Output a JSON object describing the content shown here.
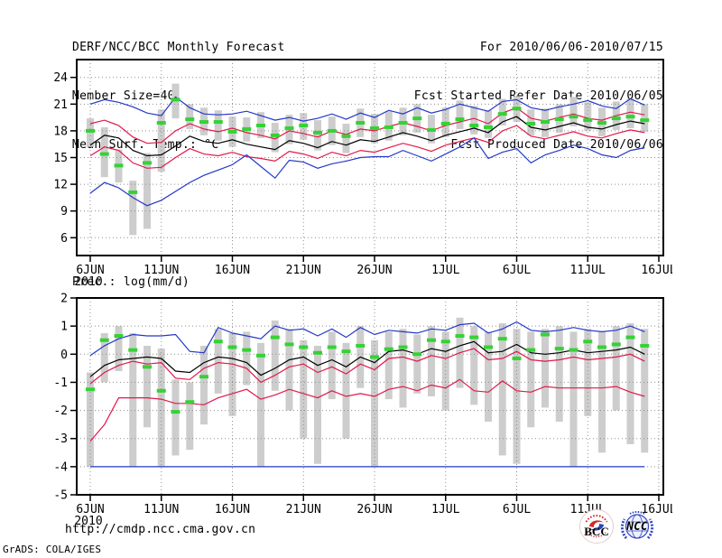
{
  "header": {
    "title": "DERF/NCC/BCC Monthly Forecast",
    "member_size": "Member Size=40",
    "for_range": "For 2010/06/06-2010/07/15",
    "fcst_started": "Fcst Started Refer Date 2010/06/05",
    "fcst_produced": "Fcst Produced Date 2010/06/06"
  },
  "footer": {
    "url": "http://cmdp.ncc.cma.gov.cn",
    "grads_credit": "GrADS: COLA/IGES",
    "bcc_label": "BCC",
    "ncc_label": "NCC"
  },
  "colors": {
    "blue": "#2438c8",
    "red": "#e0194a",
    "black": "#000000",
    "green": "#35d235",
    "bar": "#cdcdcd",
    "grid": "#8f8f8f"
  },
  "chart_data": [
    {
      "type": "line",
      "title": "Mean Surf. Temp.: °C",
      "date_range": "2010/06/06-2010/07/15",
      "n_days": 40,
      "xtick_labels": [
        "6JUN",
        "11JUN",
        "16JUN",
        "21JUN",
        "26JUN",
        "1JUL",
        "6JUL",
        "11JUL",
        "16JUL"
      ],
      "xtick_day_offsets": [
        0,
        5,
        10,
        15,
        20,
        25,
        30,
        35,
        40
      ],
      "year_label": "2010",
      "ylim": [
        4,
        26
      ],
      "yticks": [
        24,
        21,
        18,
        15,
        12,
        9,
        6
      ],
      "grid": "dotted",
      "legend": "none",
      "series": [
        {
          "name": "blue-upper-envelope",
          "color_key": "blue",
          "values": [
            21.0,
            21.5,
            21.2,
            20.7,
            20.0,
            19.7,
            21.8,
            20.6,
            19.9,
            19.8,
            19.9,
            20.2,
            19.7,
            19.2,
            19.5,
            19.1,
            19.4,
            19.9,
            19.3,
            20.0,
            19.5,
            20.3,
            19.9,
            20.6,
            20.0,
            20.4,
            21.0,
            20.6,
            20.2,
            21.3,
            21.5,
            20.6,
            20.3,
            20.7,
            21.0,
            21.4,
            20.8,
            20.5,
            21.6,
            20.9
          ]
        },
        {
          "name": "red-upper-band",
          "color_key": "red",
          "values": [
            18.8,
            19.2,
            18.6,
            17.3,
            16.6,
            16.7,
            18.0,
            18.8,
            18.2,
            17.9,
            18.3,
            17.8,
            17.5,
            17.1,
            18.0,
            17.7,
            17.3,
            18.0,
            17.6,
            18.2,
            18.0,
            18.5,
            18.9,
            18.5,
            18.0,
            18.6,
            19.0,
            19.4,
            18.8,
            20.0,
            20.6,
            19.4,
            19.1,
            19.5,
            19.9,
            19.4,
            19.2,
            19.7,
            20.1,
            19.8
          ]
        },
        {
          "name": "ensemble-mean",
          "color_key": "black",
          "values": [
            16.4,
            17.5,
            17.2,
            15.8,
            15.2,
            15.3,
            16.3,
            17.4,
            16.8,
            16.6,
            17.0,
            16.5,
            16.2,
            15.9,
            16.9,
            16.6,
            16.1,
            16.8,
            16.4,
            17.0,
            16.8,
            17.3,
            17.8,
            17.4,
            16.9,
            17.5,
            17.9,
            18.3,
            17.8,
            19.0,
            19.6,
            18.4,
            18.1,
            18.5,
            18.9,
            18.4,
            18.2,
            18.7,
            19.1,
            18.8
          ]
        },
        {
          "name": "red-lower-band",
          "color_key": "red",
          "values": [
            15.2,
            16.2,
            15.8,
            14.4,
            13.8,
            13.9,
            15.0,
            16.0,
            15.4,
            15.2,
            15.6,
            15.1,
            14.9,
            14.6,
            15.7,
            15.4,
            14.9,
            15.6,
            15.2,
            15.8,
            15.6,
            16.1,
            16.6,
            16.2,
            15.7,
            16.4,
            16.8,
            17.2,
            16.7,
            18.0,
            18.6,
            17.4,
            17.1,
            17.5,
            17.9,
            17.4,
            17.2,
            17.7,
            18.1,
            17.8
          ]
        },
        {
          "name": "blue-lower-envelope",
          "color_key": "blue",
          "values": [
            11.0,
            12.2,
            11.6,
            10.5,
            9.6,
            10.2,
            11.2,
            12.2,
            13.0,
            13.6,
            14.2,
            15.3,
            14.0,
            12.7,
            14.7,
            14.5,
            13.8,
            14.3,
            14.6,
            15.0,
            15.1,
            15.1,
            15.8,
            15.2,
            14.6,
            15.4,
            16.2,
            17.2,
            14.9,
            15.6,
            16.0,
            14.4,
            15.3,
            15.8,
            16.4,
            16.0,
            15.3,
            15.0,
            15.8,
            16.1
          ]
        }
      ],
      "markers": {
        "name": "green-dash",
        "color_key": "green",
        "values": [
          18.0,
          15.4,
          14.1,
          11.1,
          14.4,
          18.9,
          21.5,
          19.3,
          19.0,
          19.0,
          17.9,
          18.2,
          18.6,
          17.5,
          18.3,
          18.6,
          17.8,
          18.0,
          17.4,
          18.9,
          18.3,
          18.4,
          18.9,
          19.4,
          18.1,
          18.8,
          19.3,
          18.6,
          18.4,
          19.9,
          20.5,
          18.8,
          19.0,
          19.3,
          19.6,
          19.2,
          18.9,
          19.4,
          19.6,
          19.2
        ]
      },
      "bars": {
        "name": "member-spread",
        "color_key": "bar",
        "ranges": [
          [
            16.2,
            19.4
          ],
          [
            12.8,
            18.4
          ],
          [
            12.2,
            15.9
          ],
          [
            6.3,
            12.4
          ],
          [
            7.0,
            15.5
          ],
          [
            13.4,
            20.4
          ],
          [
            19.4,
            23.3
          ],
          [
            18.2,
            21.0
          ],
          [
            17.5,
            20.6
          ],
          [
            16.9,
            20.3
          ],
          [
            16.2,
            19.6
          ],
          [
            16.8,
            19.5
          ],
          [
            17.2,
            20.1
          ],
          [
            15.6,
            18.9
          ],
          [
            16.5,
            19.8
          ],
          [
            17.0,
            20.0
          ],
          [
            15.8,
            19.2
          ],
          [
            16.4,
            19.6
          ],
          [
            15.5,
            18.8
          ],
          [
            17.3,
            20.5
          ],
          [
            16.6,
            19.9
          ],
          [
            16.9,
            20.2
          ],
          [
            17.5,
            20.6
          ],
          [
            17.8,
            21.0
          ],
          [
            16.6,
            19.8
          ],
          [
            17.3,
            20.6
          ],
          [
            18.2,
            21.4
          ],
          [
            17.6,
            20.8
          ],
          [
            17.2,
            20.3
          ],
          [
            18.6,
            21.6
          ],
          [
            19.0,
            21.9
          ],
          [
            17.5,
            20.4
          ],
          [
            17.3,
            20.5
          ],
          [
            17.8,
            21.0
          ],
          [
            18.5,
            21.8
          ],
          [
            18.0,
            21.2
          ],
          [
            17.4,
            20.6
          ],
          [
            18.1,
            21.3
          ],
          [
            18.3,
            21.6
          ],
          [
            17.9,
            21.0
          ]
        ]
      }
    },
    {
      "type": "line",
      "title": "Prec.: log(mm/d)",
      "date_range": "2010/06/06-2010/07/15",
      "n_days": 40,
      "xtick_labels": [
        "6JUN",
        "11JUN",
        "16JUN",
        "21JUN",
        "26JUN",
        "1JUL",
        "6JUL",
        "11JUL",
        "16JUL"
      ],
      "xtick_day_offsets": [
        0,
        5,
        10,
        15,
        20,
        25,
        30,
        35,
        40
      ],
      "year_label": "2010",
      "ylim": [
        -5,
        2
      ],
      "yticks": [
        2,
        1,
        0,
        -1,
        -2,
        -3,
        -4,
        -5
      ],
      "grid": "dotted",
      "legend": "none",
      "series": [
        {
          "name": "blue-upper-envelope",
          "color_key": "blue",
          "values": [
            -0.05,
            0.3,
            0.55,
            0.7,
            0.65,
            0.65,
            0.7,
            0.1,
            0.05,
            0.95,
            0.75,
            0.65,
            0.55,
            1.0,
            0.85,
            0.9,
            0.65,
            0.9,
            0.6,
            0.95,
            0.7,
            0.85,
            0.8,
            0.75,
            0.9,
            0.85,
            1.05,
            1.1,
            0.75,
            0.9,
            1.15,
            0.85,
            0.8,
            0.85,
            0.95,
            0.85,
            0.8,
            0.85,
            1.0,
            0.8
          ]
        },
        {
          "name": "ensemble-mean",
          "color_key": "black",
          "values": [
            -0.8,
            -0.4,
            -0.2,
            -0.15,
            -0.1,
            -0.15,
            -0.6,
            -0.65,
            -0.3,
            -0.1,
            -0.15,
            -0.3,
            -0.75,
            -0.5,
            -0.2,
            -0.1,
            -0.4,
            -0.2,
            -0.45,
            -0.1,
            -0.3,
            0.1,
            0.15,
            0.0,
            0.2,
            0.1,
            0.3,
            0.45,
            0.05,
            0.1,
            0.35,
            0.05,
            0.0,
            0.05,
            0.15,
            0.05,
            0.1,
            0.15,
            0.25,
            0.0
          ]
        },
        {
          "name": "red-upper-band",
          "color_key": "red",
          "values": [
            -1.05,
            -0.65,
            -0.4,
            -0.25,
            -0.35,
            -0.3,
            -0.85,
            -0.9,
            -0.5,
            -0.3,
            -0.35,
            -0.5,
            -1.0,
            -0.75,
            -0.45,
            -0.35,
            -0.65,
            -0.45,
            -0.7,
            -0.35,
            -0.55,
            -0.15,
            -0.1,
            -0.25,
            -0.05,
            -0.15,
            0.05,
            0.2,
            -0.2,
            -0.15,
            0.1,
            -0.2,
            -0.25,
            -0.2,
            -0.1,
            -0.2,
            -0.15,
            -0.1,
            0.0,
            -0.25
          ]
        },
        {
          "name": "red-lower-band",
          "color_key": "red",
          "values": [
            -3.1,
            -2.5,
            -1.55,
            -1.55,
            -1.55,
            -1.6,
            -1.75,
            -1.75,
            -1.8,
            -1.55,
            -1.4,
            -1.25,
            -1.6,
            -1.45,
            -1.25,
            -1.4,
            -1.55,
            -1.3,
            -1.5,
            -1.4,
            -1.5,
            -1.25,
            -1.15,
            -1.3,
            -1.1,
            -1.2,
            -0.9,
            -1.3,
            -1.35,
            -0.95,
            -1.3,
            -1.35,
            -1.15,
            -1.2,
            -1.2,
            -1.2,
            -1.2,
            -1.15,
            -1.35,
            -1.5
          ]
        },
        {
          "name": "blue-lower-envelope",
          "color_key": "blue",
          "values": [
            -4.0,
            -4.0,
            -4.0,
            -4.0,
            -4.0,
            -4.0,
            -4.0,
            -4.0,
            -4.0,
            -4.0,
            -4.0,
            -4.0,
            -4.0,
            -4.0,
            -4.0,
            -4.0,
            -4.0,
            -4.0,
            -4.0,
            -4.0,
            -4.0,
            -4.0,
            -4.0,
            -4.0,
            -4.0,
            -4.0,
            -4.0,
            -4.0,
            -4.0,
            -4.0,
            -4.0,
            -4.0,
            -4.0,
            -4.0,
            -4.0,
            -4.0,
            -4.0,
            -4.0,
            -4.0,
            -4.0
          ]
        }
      ],
      "markers": {
        "name": "green-dash",
        "color_key": "green",
        "values": [
          -1.25,
          0.5,
          0.65,
          0.15,
          -0.45,
          -1.3,
          -2.05,
          -1.7,
          -0.8,
          0.45,
          0.25,
          0.15,
          -0.05,
          0.6,
          0.35,
          0.25,
          0.05,
          0.25,
          0.1,
          0.3,
          -0.1,
          0.18,
          0.25,
          0.0,
          0.5,
          0.45,
          0.65,
          0.6,
          0.25,
          0.55,
          -0.15,
          0.15,
          0.7,
          0.2,
          0.15,
          0.45,
          0.25,
          0.35,
          0.6,
          0.3
        ]
      },
      "bars": {
        "name": "member-spread",
        "color_key": "bar",
        "ranges": [
          [
            -4.0,
            -0.65
          ],
          [
            -1.0,
            0.75
          ],
          [
            -0.6,
            1.0
          ],
          [
            -4.0,
            0.75
          ],
          [
            -2.6,
            0.3
          ],
          [
            -4.0,
            0.2
          ],
          [
            -3.6,
            -0.9
          ],
          [
            -3.4,
            -1.0
          ],
          [
            -2.5,
            0.3
          ],
          [
            -1.4,
            0.9
          ],
          [
            -2.2,
            0.75
          ],
          [
            -1.1,
            0.8
          ],
          [
            -4.0,
            0.4
          ],
          [
            -1.3,
            1.2
          ],
          [
            -2.0,
            0.9
          ],
          [
            -3.0,
            0.5
          ],
          [
            -3.9,
            0.3
          ],
          [
            -1.6,
            0.8
          ],
          [
            -3.0,
            0.4
          ],
          [
            -1.2,
            1.0
          ],
          [
            -4.0,
            0.5
          ],
          [
            -1.6,
            0.8
          ],
          [
            -1.9,
            0.9
          ],
          [
            -1.4,
            0.7
          ],
          [
            -1.5,
            1.0
          ],
          [
            -2.0,
            0.8
          ],
          [
            -1.2,
            1.3
          ],
          [
            -1.8,
            1.0
          ],
          [
            -2.4,
            0.8
          ],
          [
            -3.6,
            1.1
          ],
          [
            -3.9,
            0.9
          ],
          [
            -2.6,
            0.8
          ],
          [
            -1.9,
            0.9
          ],
          [
            -2.4,
            1.0
          ],
          [
            -4.0,
            0.8
          ],
          [
            -2.2,
            0.9
          ],
          [
            -3.5,
            0.8
          ],
          [
            -2.0,
            1.0
          ],
          [
            -3.2,
            1.1
          ],
          [
            -3.5,
            0.9
          ]
        ]
      }
    }
  ]
}
